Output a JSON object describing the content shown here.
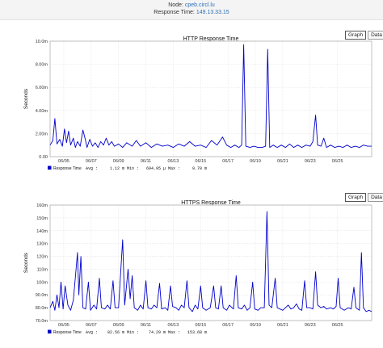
{
  "header": {
    "node_label": "Node:",
    "node_value": "cpeb.circl.lu",
    "response_time_label": "Response Time:",
    "response_time_value": "149.13.33.15"
  },
  "tabs": {
    "graph": "Graph",
    "data": "Data"
  },
  "colors": {
    "series": "#0000cc",
    "grid": "#dcdcdc"
  },
  "chart_data": [
    {
      "type": "line",
      "title": "HTTP Response Time",
      "ylabel": "Seconds",
      "xlabel": "",
      "ylim": [
        0,
        10.0
      ],
      "y_ticks": [
        0,
        2,
        4,
        6,
        8,
        10
      ],
      "y_tick_labels": [
        "0.00",
        "2.00m",
        "4.00m",
        "6.00m",
        "8.00m",
        "10.0m"
      ],
      "x_ticks": [
        2,
        4,
        6,
        8,
        10,
        12,
        14,
        16,
        18,
        20
      ],
      "x_tick_labels": [
        "06/05",
        "06/07",
        "06/09",
        "06/11",
        "06/13",
        "06/15",
        "06/17",
        "06/19",
        "06/21",
        "06/23",
        "06/25"
      ],
      "x_tick_positions": [
        1,
        3,
        5,
        7,
        9,
        11,
        13,
        15,
        17,
        19,
        21
      ],
      "xlim": [
        0,
        23.5
      ],
      "series": [
        {
          "name": "Response Time",
          "points": [
            [
              0.0,
              1.0
            ],
            [
              0.2,
              1.4
            ],
            [
              0.35,
              3.3
            ],
            [
              0.5,
              1.1
            ],
            [
              0.7,
              1.5
            ],
            [
              0.9,
              0.9
            ],
            [
              1.05,
              2.4
            ],
            [
              1.2,
              1.2
            ],
            [
              1.35,
              2.2
            ],
            [
              1.5,
              1.0
            ],
            [
              1.7,
              1.6
            ],
            [
              1.85,
              0.8
            ],
            [
              2.0,
              1.3
            ],
            [
              2.2,
              0.9
            ],
            [
              2.4,
              2.3
            ],
            [
              2.55,
              1.6
            ],
            [
              2.7,
              0.8
            ],
            [
              2.9,
              1.5
            ],
            [
              3.1,
              0.9
            ],
            [
              3.3,
              1.2
            ],
            [
              3.5,
              0.8
            ],
            [
              3.7,
              1.3
            ],
            [
              3.9,
              1.0
            ],
            [
              4.1,
              1.6
            ],
            [
              4.3,
              1.0
            ],
            [
              4.5,
              1.3
            ],
            [
              4.7,
              0.9
            ],
            [
              5.0,
              1.1
            ],
            [
              5.3,
              0.8
            ],
            [
              5.6,
              1.2
            ],
            [
              6.0,
              0.9
            ],
            [
              6.3,
              1.4
            ],
            [
              6.6,
              0.9
            ],
            [
              7.0,
              1.2
            ],
            [
              7.4,
              0.8
            ],
            [
              7.8,
              1.1
            ],
            [
              8.2,
              0.9
            ],
            [
              8.6,
              1.0
            ],
            [
              9.0,
              0.8
            ],
            [
              9.4,
              1.1
            ],
            [
              9.8,
              0.9
            ],
            [
              10.2,
              1.3
            ],
            [
              10.6,
              0.9
            ],
            [
              11.0,
              1.0
            ],
            [
              11.4,
              0.8
            ],
            [
              11.8,
              1.4
            ],
            [
              12.2,
              1.0
            ],
            [
              12.6,
              1.7
            ],
            [
              12.9,
              1.0
            ],
            [
              13.2,
              0.8
            ],
            [
              13.5,
              1.0
            ],
            [
              13.8,
              0.8
            ],
            [
              14.0,
              1.0
            ],
            [
              14.15,
              9.7
            ],
            [
              14.3,
              0.9
            ],
            [
              14.6,
              0.8
            ],
            [
              14.9,
              0.9
            ],
            [
              15.2,
              0.8
            ],
            [
              15.5,
              0.8
            ],
            [
              15.75,
              0.9
            ],
            [
              15.9,
              9.3
            ],
            [
              16.05,
              0.8
            ],
            [
              16.3,
              1.0
            ],
            [
              16.6,
              0.8
            ],
            [
              16.9,
              1.0
            ],
            [
              17.2,
              0.8
            ],
            [
              17.5,
              1.1
            ],
            [
              17.8,
              0.8
            ],
            [
              18.1,
              1.0
            ],
            [
              18.4,
              0.8
            ],
            [
              18.7,
              1.0
            ],
            [
              19.0,
              0.9
            ],
            [
              19.2,
              1.3
            ],
            [
              19.4,
              3.6
            ],
            [
              19.55,
              1.0
            ],
            [
              19.8,
              0.9
            ],
            [
              20.0,
              1.6
            ],
            [
              20.2,
              0.8
            ],
            [
              20.5,
              1.0
            ],
            [
              20.8,
              0.8
            ],
            [
              21.1,
              0.9
            ],
            [
              21.4,
              0.8
            ],
            [
              21.7,
              1.0
            ],
            [
              22.0,
              0.8
            ],
            [
              22.3,
              0.9
            ],
            [
              22.6,
              0.8
            ],
            [
              22.9,
              1.0
            ],
            [
              23.2,
              0.9
            ],
            [
              23.5,
              0.9
            ]
          ]
        }
      ],
      "legend": {
        "label": "Response Time",
        "stats": "Avg :     1.12 m Min :   694.95 µ Max :     9.70 m"
      }
    },
    {
      "type": "line",
      "title": "HTTPS Response Time",
      "ylabel": "Seconds",
      "xlabel": "",
      "ylim": [
        70,
        160
      ],
      "y_ticks": [
        70,
        80,
        90,
        100,
        110,
        120,
        130,
        140,
        150,
        160
      ],
      "y_tick_labels": [
        "70.0m",
        "80.0m",
        "90.0m",
        "100m",
        "110m",
        "120m",
        "130m",
        "140m",
        "150m",
        "160m"
      ],
      "x_tick_labels": [
        "06/05",
        "06/07",
        "06/09",
        "06/11",
        "06/13",
        "06/15",
        "06/17",
        "06/19",
        "06/21",
        "06/23",
        "06/25"
      ],
      "x_tick_positions": [
        1,
        3,
        5,
        7,
        9,
        11,
        13,
        15,
        17,
        19,
        21
      ],
      "xlim": [
        0,
        23.5
      ],
      "series": [
        {
          "name": "Response Time",
          "points": [
            [
              0.0,
              80
            ],
            [
              0.2,
              85
            ],
            [
              0.35,
              78
            ],
            [
              0.5,
              90
            ],
            [
              0.65,
              80
            ],
            [
              0.8,
              100
            ],
            [
              0.95,
              79
            ],
            [
              1.1,
              97
            ],
            [
              1.3,
              82
            ],
            [
              1.5,
              78
            ],
            [
              1.7,
              86
            ],
            [
              1.85,
              104
            ],
            [
              2.0,
              123
            ],
            [
              2.1,
              90
            ],
            [
              2.25,
              120
            ],
            [
              2.4,
              80
            ],
            [
              2.6,
              79
            ],
            [
              2.8,
              100
            ],
            [
              2.95,
              78
            ],
            [
              3.2,
              82
            ],
            [
              3.4,
              79
            ],
            [
              3.6,
              103
            ],
            [
              3.75,
              80
            ],
            [
              4.0,
              79
            ],
            [
              4.2,
              82
            ],
            [
              4.4,
              79
            ],
            [
              4.6,
              101
            ],
            [
              4.75,
              80
            ],
            [
              5.0,
              80
            ],
            [
              5.3,
              133
            ],
            [
              5.45,
              82
            ],
            [
              5.7,
              110
            ],
            [
              5.85,
              87
            ],
            [
              6.0,
              105
            ],
            [
              6.15,
              80
            ],
            [
              6.4,
              78
            ],
            [
              6.6,
              82
            ],
            [
              6.8,
              79
            ],
            [
              7.0,
              101
            ],
            [
              7.15,
              80
            ],
            [
              7.4,
              79
            ],
            [
              7.6,
              82
            ],
            [
              7.8,
              80
            ],
            [
              8.0,
              99
            ],
            [
              8.15,
              79
            ],
            [
              8.4,
              80
            ],
            [
              8.6,
              78
            ],
            [
              8.8,
              97
            ],
            [
              8.95,
              81
            ],
            [
              9.2,
              80
            ],
            [
              9.4,
              78
            ],
            [
              9.6,
              82
            ],
            [
              9.8,
              80
            ],
            [
              10.0,
              101
            ],
            [
              10.15,
              80
            ],
            [
              10.4,
              77
            ],
            [
              10.6,
              82
            ],
            [
              10.8,
              79
            ],
            [
              11.0,
              97
            ],
            [
              11.15,
              80
            ],
            [
              11.4,
              78
            ],
            [
              11.7,
              80
            ],
            [
              11.95,
              97
            ],
            [
              12.1,
              80
            ],
            [
              12.3,
              79
            ],
            [
              12.5,
              97
            ],
            [
              12.65,
              80
            ],
            [
              12.9,
              78
            ],
            [
              13.1,
              82
            ],
            [
              13.4,
              79
            ],
            [
              13.6,
              105
            ],
            [
              13.75,
              80
            ],
            [
              14.0,
              79
            ],
            [
              14.2,
              82
            ],
            [
              14.4,
              78
            ],
            [
              14.6,
              80
            ],
            [
              14.8,
              100
            ],
            [
              14.95,
              79
            ],
            [
              15.2,
              78
            ],
            [
              15.4,
              80
            ],
            [
              15.65,
              80
            ],
            [
              15.85,
              155
            ],
            [
              16.0,
              82
            ],
            [
              16.2,
              80
            ],
            [
              16.45,
              103
            ],
            [
              16.6,
              80
            ],
            [
              16.8,
              79
            ],
            [
              17.0,
              78
            ],
            [
              17.2,
              80
            ],
            [
              17.4,
              82
            ],
            [
              17.6,
              79
            ],
            [
              17.8,
              80
            ],
            [
              18.0,
              83
            ],
            [
              18.2,
              79
            ],
            [
              18.4,
              78
            ],
            [
              18.6,
              101
            ],
            [
              18.75,
              80
            ],
            [
              19.0,
              80
            ],
            [
              19.2,
              79
            ],
            [
              19.4,
              108
            ],
            [
              19.55,
              82
            ],
            [
              19.8,
              80
            ],
            [
              20.0,
              81
            ],
            [
              20.2,
              79
            ],
            [
              20.5,
              80
            ],
            [
              20.7,
              79
            ],
            [
              20.9,
              81
            ],
            [
              21.05,
              103
            ],
            [
              21.2,
              80
            ],
            [
              21.5,
              78
            ],
            [
              21.8,
              80
            ],
            [
              22.0,
              79
            ],
            [
              22.2,
              96
            ],
            [
              22.35,
              80
            ],
            [
              22.6,
              78
            ],
            [
              22.75,
              123
            ],
            [
              22.9,
              80
            ],
            [
              23.1,
              77
            ],
            [
              23.3,
              78
            ],
            [
              23.5,
              77
            ]
          ]
        }
      ],
      "legend": {
        "label": "Response Time",
        "stats": "Avg :    82.56 m Min :    74.29 m Max :   153.68 m"
      }
    }
  ]
}
